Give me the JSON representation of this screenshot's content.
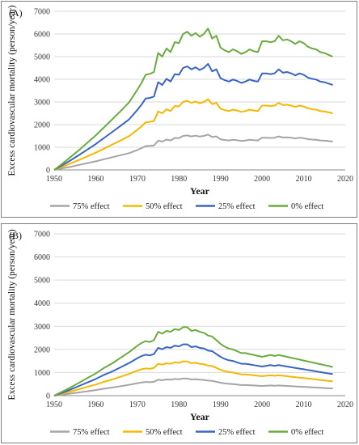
{
  "chart_data": [
    {
      "type": "line",
      "panel_label": "(A)",
      "xlabel": "Year",
      "ylabel": "Excess cardiovascular mortality (person/year)",
      "xlim": [
        1950,
        2020
      ],
      "ylim": [
        0,
        7000
      ],
      "xticks": [
        1950,
        1960,
        1970,
        1980,
        1990,
        2000,
        2010,
        2020
      ],
      "yticks": [
        0,
        1000,
        2000,
        3000,
        4000,
        5000,
        6000,
        7000
      ],
      "grid": "horizontal",
      "legend_position": "bottom",
      "x": [
        1950,
        1952,
        1954,
        1956,
        1958,
        1960,
        1962,
        1964,
        1966,
        1968,
        1970,
        1971,
        1972,
        1973,
        1974,
        1975,
        1976,
        1977,
        1978,
        1979,
        1980,
        1981,
        1982,
        1983,
        1984,
        1985,
        1986,
        1987,
        1988,
        1989,
        1990,
        1991,
        1992,
        1993,
        1994,
        1995,
        1996,
        1997,
        1998,
        1999,
        2000,
        2001,
        2002,
        2003,
        2004,
        2005,
        2006,
        2007,
        2008,
        2009,
        2010,
        2011,
        2012,
        2013,
        2014,
        2015,
        2016,
        2017
      ],
      "series": [
        {
          "name": "75% effect",
          "color": "#a5a5a5",
          "values": [
            0,
            70,
            140,
            220,
            300,
            380,
            470,
            560,
            650,
            740,
            880,
            960,
            1050,
            1060,
            1080,
            1290,
            1250,
            1340,
            1300,
            1410,
            1400,
            1500,
            1520,
            1480,
            1510,
            1470,
            1500,
            1560,
            1450,
            1480,
            1350,
            1320,
            1300,
            1330,
            1310,
            1280,
            1300,
            1330,
            1310,
            1300,
            1420,
            1420,
            1410,
            1420,
            1480,
            1430,
            1440,
            1420,
            1390,
            1420,
            1400,
            1360,
            1340,
            1330,
            1300,
            1290,
            1270,
            1250
          ]
        },
        {
          "name": "50% effect",
          "color": "#f5b800",
          "values": [
            0,
            140,
            290,
            440,
            600,
            760,
            940,
            1120,
            1300,
            1490,
            1770,
            1920,
            2100,
            2120,
            2160,
            2580,
            2500,
            2680,
            2600,
            2820,
            2800,
            3000,
            3050,
            2960,
            3020,
            2940,
            3000,
            3120,
            2900,
            2960,
            2700,
            2640,
            2600,
            2660,
            2620,
            2560,
            2600,
            2660,
            2620,
            2600,
            2840,
            2840,
            2820,
            2840,
            2960,
            2860,
            2880,
            2840,
            2780,
            2840,
            2800,
            2720,
            2680,
            2660,
            2600,
            2580,
            2540,
            2500
          ]
        },
        {
          "name": "25% effect",
          "color": "#3a66c3",
          "values": [
            0,
            210,
            430,
            660,
            900,
            1140,
            1410,
            1680,
            1950,
            2230,
            2650,
            2880,
            3150,
            3180,
            3240,
            3870,
            3750,
            4020,
            3900,
            4230,
            4200,
            4500,
            4570,
            4440,
            4530,
            4410,
            4500,
            4680,
            4350,
            4440,
            4050,
            3960,
            3900,
            3990,
            3930,
            3840,
            3900,
            3990,
            3930,
            3900,
            4260,
            4260,
            4230,
            4260,
            4440,
            4290,
            4320,
            4260,
            4170,
            4260,
            4200,
            4080,
            4020,
            3990,
            3900,
            3870,
            3810,
            3750
          ]
        },
        {
          "name": "0% effect",
          "color": "#6aab3e",
          "values": [
            0,
            280,
            580,
            880,
            1200,
            1520,
            1880,
            2240,
            2600,
            2980,
            3540,
            3840,
            4200,
            4240,
            4320,
            5160,
            5000,
            5360,
            5200,
            5640,
            5600,
            6000,
            6100,
            5920,
            6040,
            5880,
            6000,
            6240,
            5800,
            5920,
            5400,
            5280,
            5200,
            5320,
            5240,
            5120,
            5200,
            5320,
            5240,
            5200,
            5680,
            5680,
            5640,
            5680,
            5920,
            5720,
            5760,
            5680,
            5560,
            5680,
            5600,
            5440,
            5360,
            5320,
            5200,
            5160,
            5080,
            5000
          ]
        }
      ]
    },
    {
      "type": "line",
      "panel_label": "(B)",
      "xlabel": "Year",
      "ylabel": "Excess cardiovascular mortality (person/year)",
      "xlim": [
        1950,
        2020
      ],
      "ylim": [
        0,
        7000
      ],
      "xticks": [
        1950,
        1960,
        1970,
        1980,
        1990,
        2000,
        2010,
        2020
      ],
      "yticks": [
        0,
        1000,
        2000,
        3000,
        4000,
        5000,
        6000,
        7000
      ],
      "grid": "horizontal",
      "legend_position": "bottom",
      "x": [
        1950,
        1952,
        1954,
        1956,
        1958,
        1960,
        1962,
        1964,
        1966,
        1968,
        1970,
        1971,
        1972,
        1973,
        1974,
        1975,
        1976,
        1977,
        1978,
        1979,
        1980,
        1981,
        1982,
        1983,
        1984,
        1985,
        1986,
        1987,
        1988,
        1989,
        1990,
        1991,
        1992,
        1993,
        1994,
        1995,
        1996,
        1997,
        1998,
        1999,
        2000,
        2001,
        2002,
        2003,
        2004,
        2005,
        2006,
        2007,
        2008,
        2009,
        2010,
        2011,
        2012,
        2013,
        2014,
        2015,
        2016,
        2017
      ],
      "series": [
        {
          "name": "75% effect",
          "color": "#a5a5a5",
          "values": [
            0,
            40,
            90,
            140,
            190,
            240,
            300,
            350,
            410,
            470,
            540,
            570,
            590,
            580,
            600,
            690,
            670,
            700,
            690,
            720,
            710,
            740,
            740,
            700,
            710,
            690,
            680,
            650,
            640,
            600,
            560,
            530,
            510,
            500,
            480,
            460,
            460,
            450,
            440,
            430,
            420,
            430,
            440,
            430,
            440,
            430,
            420,
            410,
            400,
            390,
            380,
            370,
            360,
            350,
            340,
            330,
            320,
            310
          ]
        },
        {
          "name": "50% effect",
          "color": "#f5b800",
          "values": [
            0,
            90,
            180,
            280,
            380,
            480,
            600,
            700,
            820,
            940,
            1080,
            1140,
            1180,
            1160,
            1200,
            1380,
            1340,
            1400,
            1380,
            1440,
            1420,
            1480,
            1480,
            1400,
            1420,
            1380,
            1360,
            1300,
            1280,
            1200,
            1120,
            1060,
            1020,
            1000,
            960,
            920,
            920,
            900,
            880,
            860,
            840,
            860,
            880,
            860,
            880,
            860,
            840,
            820,
            800,
            780,
            760,
            740,
            720,
            700,
            680,
            660,
            640,
            620
          ]
        },
        {
          "name": "25% effect",
          "color": "#3a66c3",
          "values": [
            0,
            130,
            270,
            420,
            570,
            720,
            900,
            1050,
            1230,
            1410,
            1620,
            1710,
            1770,
            1740,
            1800,
            2070,
            2010,
            2100,
            2070,
            2160,
            2130,
            2220,
            2220,
            2100,
            2130,
            2070,
            2040,
            1950,
            1920,
            1800,
            1680,
            1590,
            1530,
            1500,
            1440,
            1380,
            1380,
            1350,
            1320,
            1290,
            1260,
            1290,
            1320,
            1290,
            1320,
            1290,
            1260,
            1230,
            1200,
            1170,
            1140,
            1110,
            1080,
            1050,
            1020,
            990,
            960,
            930
          ]
        },
        {
          "name": "0% effect",
          "color": "#6aab3e",
          "values": [
            0,
            180,
            360,
            560,
            760,
            960,
            1200,
            1400,
            1640,
            1880,
            2160,
            2280,
            2360,
            2320,
            2400,
            2760,
            2680,
            2800,
            2760,
            2880,
            2840,
            2960,
            2960,
            2800,
            2840,
            2760,
            2720,
            2600,
            2560,
            2400,
            2240,
            2120,
            2040,
            2000,
            1920,
            1840,
            1840,
            1800,
            1760,
            1720,
            1680,
            1720,
            1760,
            1720,
            1760,
            1720,
            1680,
            1640,
            1600,
            1560,
            1520,
            1480,
            1440,
            1400,
            1360,
            1320,
            1280,
            1240
          ]
        }
      ]
    }
  ]
}
